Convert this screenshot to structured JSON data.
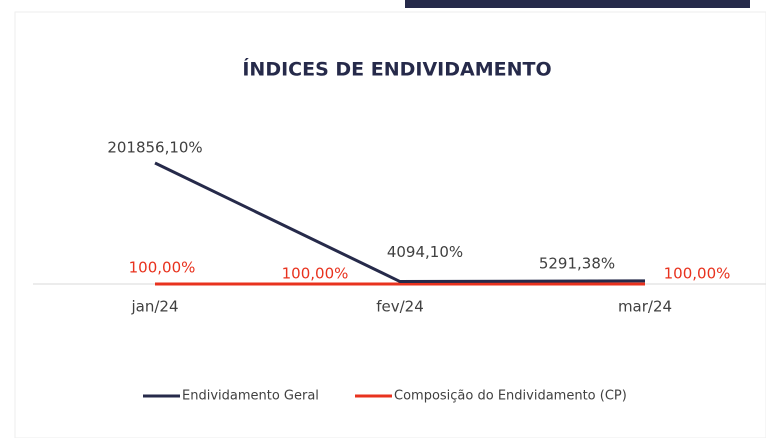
{
  "chart_data": {
    "type": "line",
    "title": "ÍNDICES DE ENDIVIDAMENTO",
    "categories": [
      "jan/24",
      "fev/24",
      "mar/24"
    ],
    "series": [
      {
        "name": "Endividamento Geral",
        "color": "#262a4a",
        "values": [
          201856.1,
          4094.1,
          5291.38
        ],
        "value_labels": [
          "201856,10%",
          "4094,10%",
          "5291,38%"
        ]
      },
      {
        "name": "Composição do Endividamento (CP)",
        "color": "#e8321e",
        "values": [
          100,
          100,
          100
        ],
        "value_labels": [
          "100,00%",
          "100,00%",
          "100,00%"
        ]
      }
    ],
    "legend": "bottom"
  }
}
